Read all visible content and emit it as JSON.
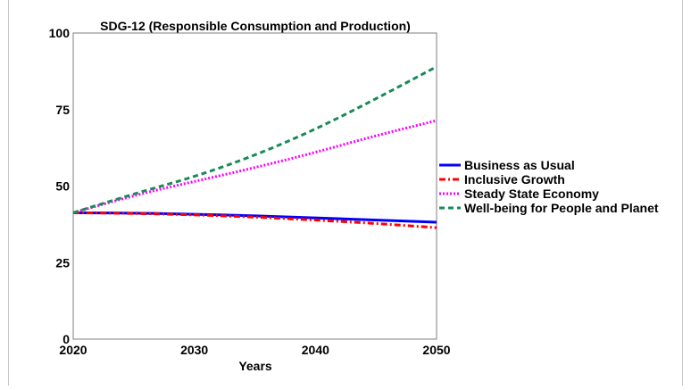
{
  "chart_data": {
    "type": "line",
    "title": "SDG-12 (Responsible Consumption and Production)",
    "xlabel": "Years",
    "ylabel": "",
    "xlim": [
      2020,
      2050
    ],
    "ylim": [
      0,
      100
    ],
    "x_ticks": [
      2020,
      2030,
      2040,
      2050
    ],
    "y_ticks": [
      0,
      25,
      50,
      75,
      100
    ],
    "grid": false,
    "legend_position": "right",
    "x": [
      2020,
      2025,
      2030,
      2035,
      2040,
      2045,
      2050
    ],
    "series": [
      {
        "name": "Business as Usual",
        "color": "#0000ff",
        "dash": "solid",
        "values": [
          41.3,
          41.2,
          40.8,
          40.3,
          39.6,
          38.9,
          38.2
        ]
      },
      {
        "name": "Inclusive Growth",
        "color": "#ff0000",
        "dash": "dashdot",
        "values": [
          41.3,
          41.1,
          40.6,
          39.9,
          38.9,
          37.8,
          36.4
        ]
      },
      {
        "name": "Steady State Economy",
        "color": "#ff00ff",
        "dash": "dotted",
        "values": [
          41.3,
          47.0,
          51.5,
          56.0,
          61.0,
          66.5,
          71.4
        ]
      },
      {
        "name": "Well-being for People and Planet",
        "color": "#1a8a5a",
        "dash": "dashed",
        "values": [
          41.3,
          47.5,
          53.0,
          60.0,
          68.5,
          78.5,
          89.0
        ]
      }
    ]
  }
}
